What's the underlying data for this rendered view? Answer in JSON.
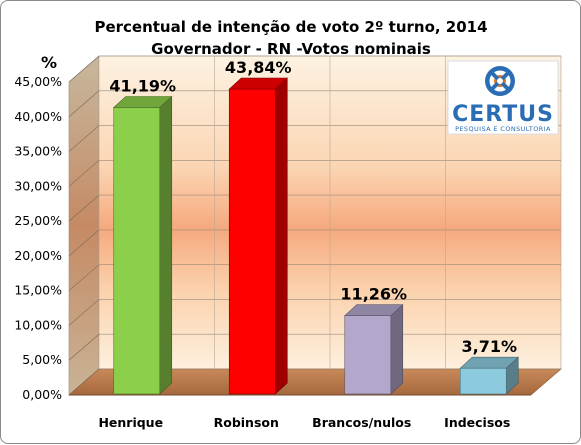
{
  "chart_data": {
    "type": "bar",
    "title": "Percentual de intenção de voto 2º turno, 2014",
    "subtitle": "Governador - RN -Votos nominais",
    "ylabel": "%",
    "xlabel": "",
    "categories": [
      "Henrique",
      "Robinson",
      "Brancos/nulos",
      "Indecisos"
    ],
    "values": [
      41.19,
      43.84,
      11.26,
      3.71
    ],
    "value_labels": [
      "41,19%",
      "43,84%",
      "11,26%",
      "3,71%"
    ],
    "bar_colors": [
      "#8ccf4a",
      "#ff0000",
      "#b3a7cc",
      "#8ccbdd"
    ],
    "ylim": [
      0,
      45
    ],
    "yticks": [
      0,
      5,
      10,
      15,
      20,
      25,
      30,
      35,
      40,
      45
    ],
    "ytick_labels": [
      "0,00%",
      "5,00%",
      "10,00%",
      "15,00%",
      "20,00%",
      "25,00%",
      "30,00%",
      "35,00%",
      "40,00%",
      "45,00%"
    ],
    "grid": true,
    "style": "3d"
  },
  "logo": {
    "name": "CERTUS",
    "tagline": "PESQUISA E CONSULTORIA",
    "icon": "certus-logo-icon",
    "color": "#2a6db5"
  }
}
